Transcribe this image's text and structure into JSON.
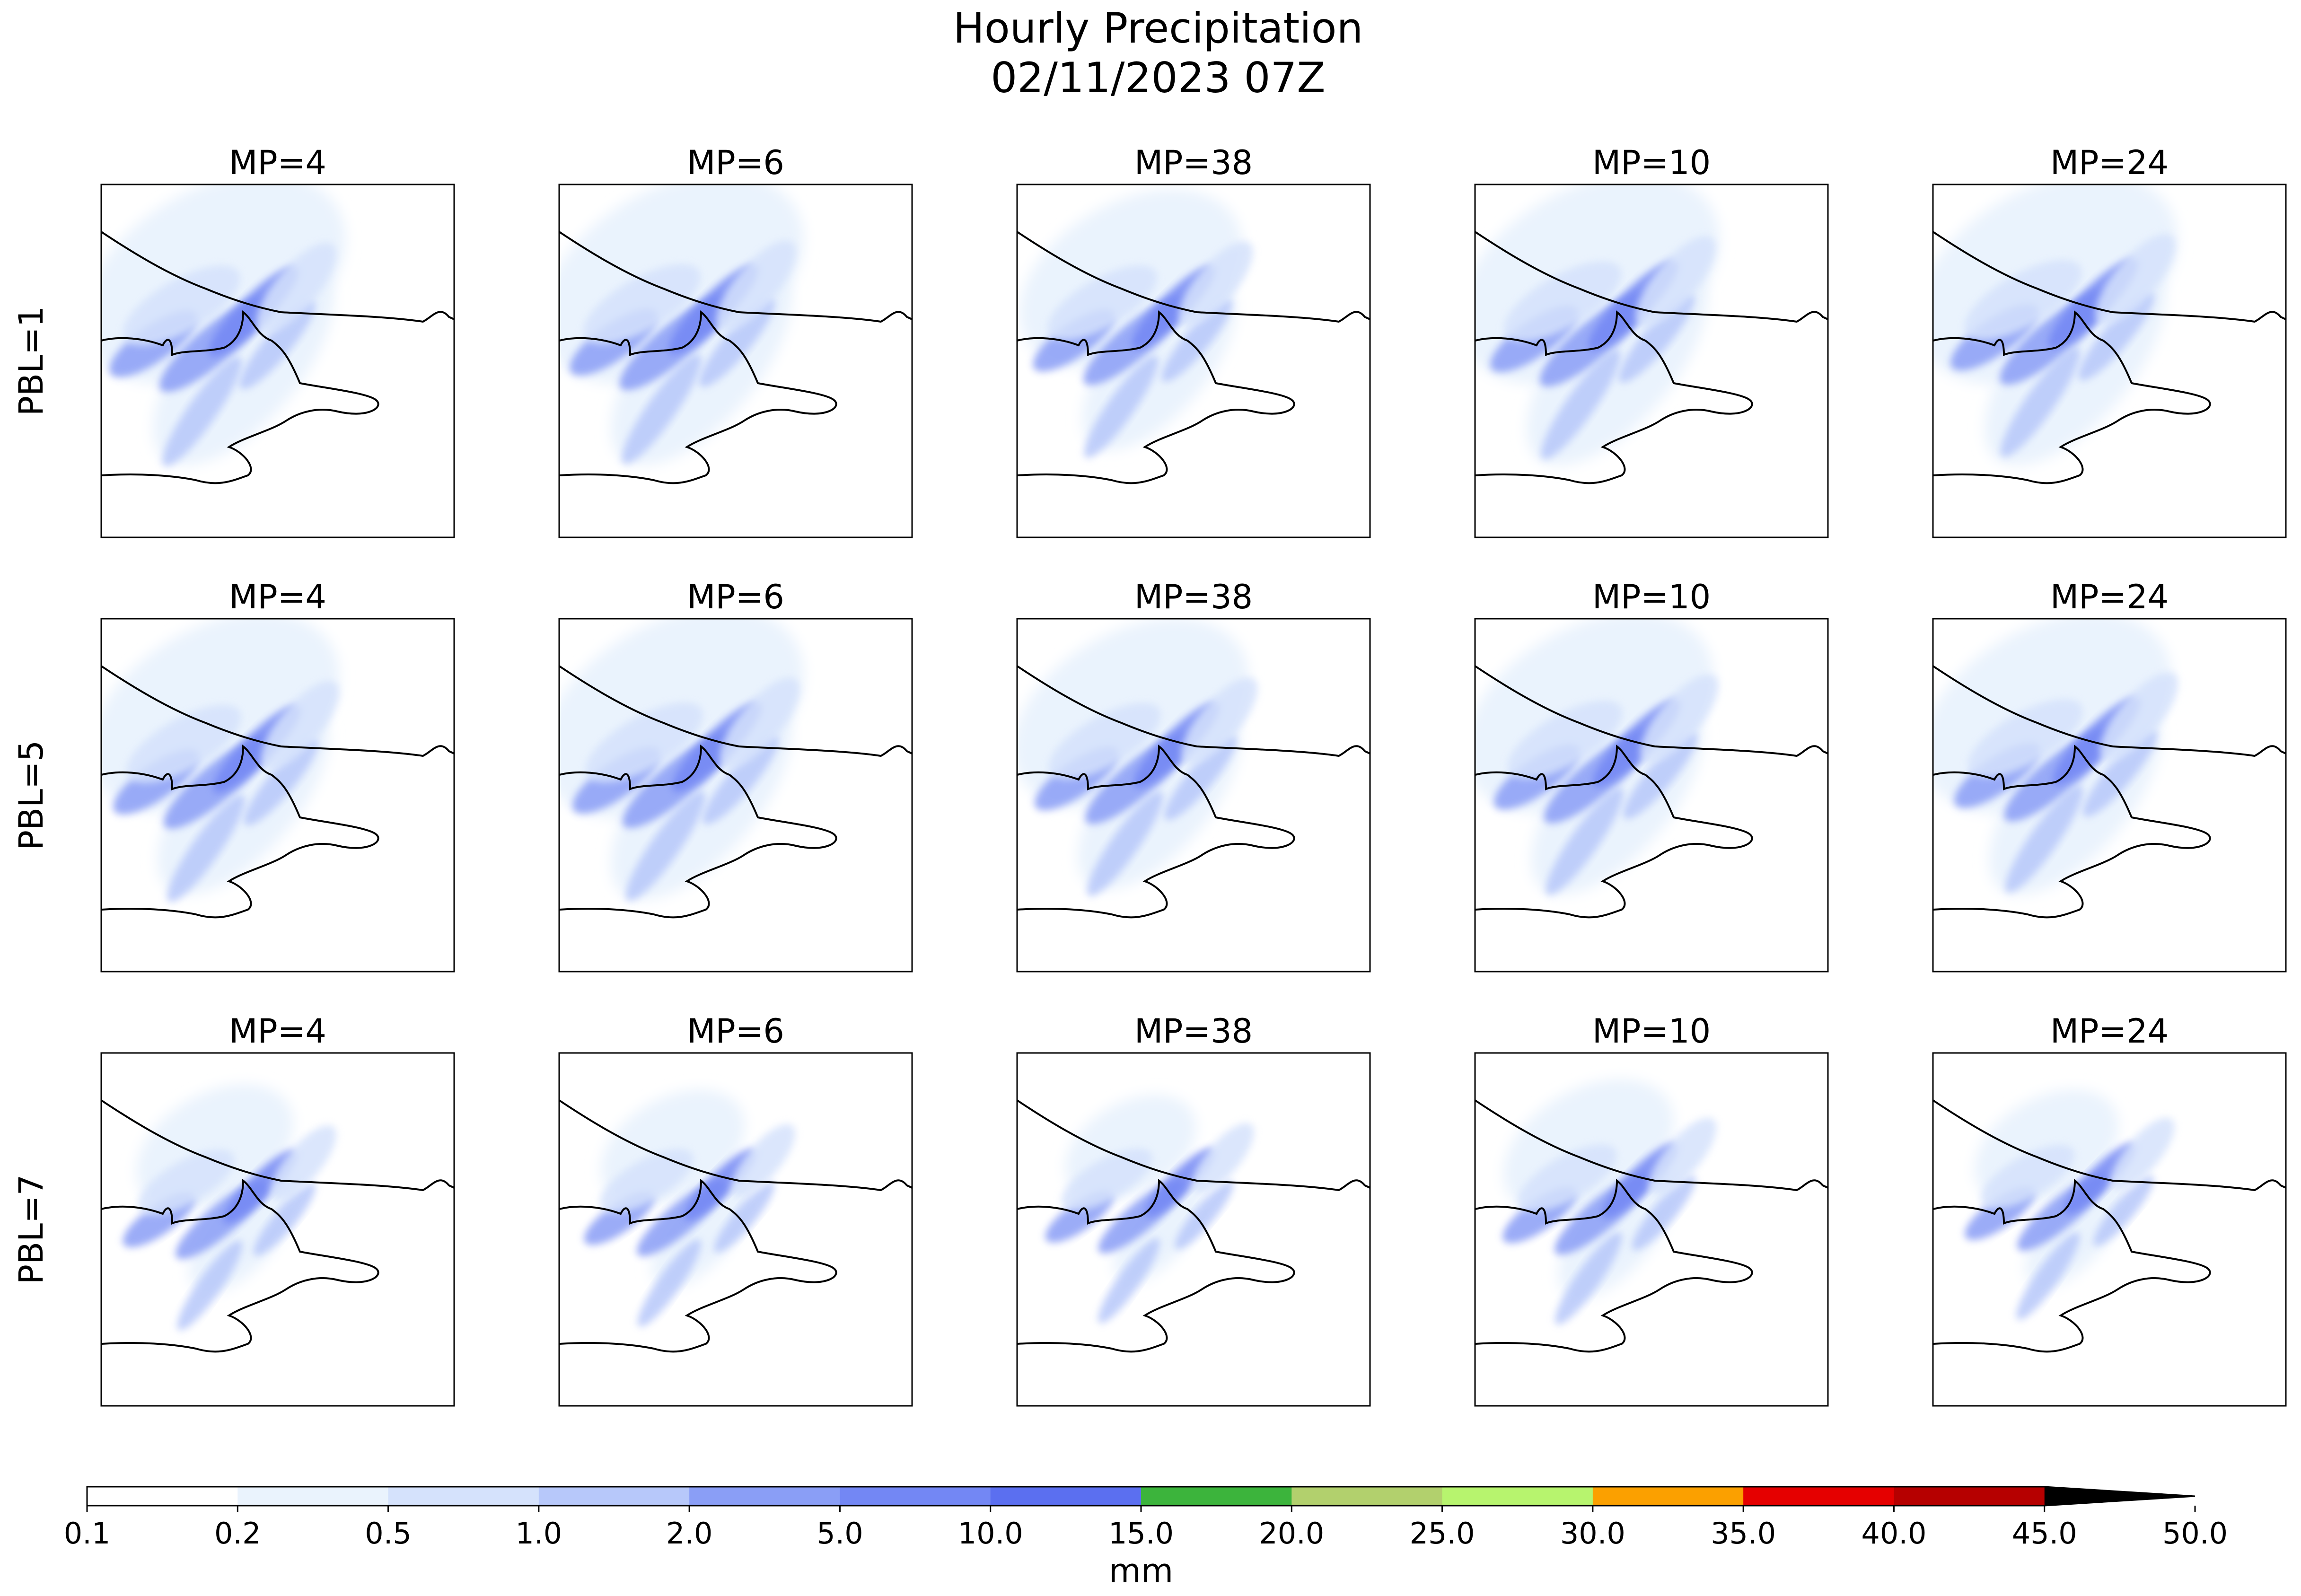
{
  "figure": {
    "title_line1": "Hourly Precipitation",
    "title_line2": "02/11/2023 07Z"
  },
  "panels": {
    "columns": [
      "MP=4",
      "MP=6",
      "MP=38",
      "MP=10",
      "MP=24"
    ],
    "rows": [
      "PBL=1",
      "PBL=5",
      "PBL=7"
    ]
  },
  "chart_data": {
    "type": "heatmap",
    "title": "Hourly Precipitation\n02/11/2023 07Z",
    "grid": false,
    "layout": "3 rows x 5 columns of map panels",
    "panel_titles": [
      "MP=4",
      "MP=6",
      "MP=38",
      "MP=10",
      "MP=24"
    ],
    "row_labels": [
      "PBL=1",
      "PBL=5",
      "PBL=7"
    ],
    "colorbar": {
      "label": "mm",
      "orientation": "horizontal",
      "extend": "max",
      "levels": [
        0.1,
        0.2,
        0.5,
        1.0,
        2.0,
        5.0,
        10.0,
        15.0,
        20.0,
        25.0,
        30.0,
        35.0,
        40.0,
        45.0,
        50.0
      ],
      "tick_labels": [
        "0.1",
        "0.2",
        "0.5",
        "1.0",
        "2.0",
        "5.0",
        "10.0",
        "15.0",
        "20.0",
        "25.0",
        "30.0",
        "35.0",
        "40.0",
        "45.0",
        "50.0"
      ],
      "colors": [
        "#ffffff",
        "#eaf3fd",
        "#d5e2fc",
        "#b7c8fa",
        "#8a9ef6",
        "#7387f4",
        "#5b6ff0",
        "#3cb43c",
        "#b2d06d",
        "#b7f46e",
        "#fba000",
        "#e50000",
        "#b60000",
        "#000000"
      ]
    },
    "precip_fill_colors": {
      "light": "#eaf3fd",
      "medium": "#d5e2fc",
      "moderate": "#b7c8fa",
      "heavy": "#8a9ef6",
      "heaviest": "#7387f4"
    },
    "panels_intensity": [
      [
        1.0,
        1.0,
        0.85,
        1.0,
        1.0
      ],
      [
        0.95,
        1.0,
        0.9,
        0.95,
        0.95
      ],
      [
        0.6,
        0.55,
        0.5,
        0.65,
        0.55
      ]
    ]
  }
}
